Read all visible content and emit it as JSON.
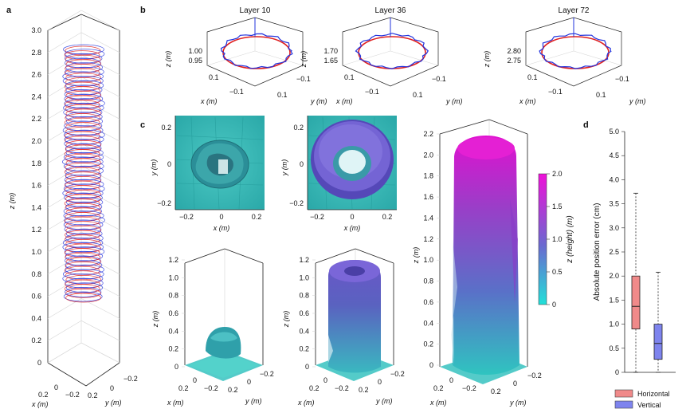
{
  "panel_labels": {
    "a": "a",
    "b": "b",
    "c": "c",
    "d": "d"
  },
  "panel_a": {
    "z_ticks": [
      "0",
      "0.2",
      "0.4",
      "0.6",
      "0.8",
      "1.0",
      "1.2",
      "1.4",
      "1.6",
      "1.8",
      "2.0",
      "2.2",
      "2.4",
      "2.6",
      "2.8",
      "3.0"
    ],
    "z_label": "z (m)",
    "x_label": "x (m)",
    "y_label": "y (m)",
    "x_ticks": [
      "0.2",
      "0",
      "−0.2"
    ],
    "y_ticks": [
      "0.2",
      "0",
      "−0.2"
    ]
  },
  "panel_b": [
    {
      "title": "Layer 10",
      "z_ticks": [
        "1.00",
        "0.95"
      ],
      "x_ticks": [
        "0.1",
        "−0.1"
      ],
      "y_ticks": [
        "0.1",
        "−0.1"
      ],
      "x_label": "x (m)",
      "y_label": "y (m)",
      "z_label": "z (m)"
    },
    {
      "title": "Layer 36",
      "z_ticks": [
        "1.70",
        "1.65"
      ],
      "x_ticks": [
        "0.1",
        "−0.1"
      ],
      "y_ticks": [
        "0.1",
        "−0.1"
      ],
      "x_label": "x (m)",
      "y_label": "y (m)",
      "z_label": "z (m)"
    },
    {
      "title": "Layer 72",
      "z_ticks": [
        "2.80",
        "2.75"
      ],
      "x_ticks": [
        "0.1",
        "−0.1"
      ],
      "y_ticks": [
        "0.1",
        "−0.1"
      ],
      "x_label": "x (m)",
      "y_label": "y (m)",
      "z_label": "z (m)"
    }
  ],
  "panel_c": {
    "top_views": [
      {
        "y_ticks": [
          "0.2",
          "0",
          "−0.2"
        ],
        "x_ticks": [
          "−0.2",
          "0",
          "0.2"
        ],
        "x_label": "x (m)",
        "y_label": "y (m)"
      },
      {
        "y_ticks": [
          "0.2",
          "0",
          "−0.2"
        ],
        "x_ticks": [
          "−0.2",
          "0",
          "0.2"
        ],
        "x_label": "x (m)",
        "y_label": "y (m)"
      }
    ],
    "views_3d": [
      {
        "z_ticks": [
          "1.2",
          "1.0",
          "0.8",
          "0.6",
          "0.4",
          "0.2",
          "0"
        ],
        "z_label": "z (m)",
        "x_label": "x (m)",
        "y_label": "y (m)",
        "x_ticks": [
          "0.2",
          "0",
          "−0.2"
        ],
        "y_ticks": [
          "0.2",
          "0",
          "−0.2"
        ]
      },
      {
        "z_ticks": [
          "1.2",
          "1.0",
          "0.8",
          "0.6",
          "0.4",
          "0.2",
          "0"
        ],
        "z_label": "z (m)",
        "x_label": "x (m)",
        "y_label": "y (m)",
        "x_ticks": [
          "0.2",
          "0",
          "−0.2"
        ],
        "y_ticks": [
          "0.2",
          "0",
          "−0.2"
        ]
      },
      {
        "z_ticks": [
          "2.2",
          "2.0",
          "1.8",
          "1.6",
          "1.4",
          "1.2",
          "1.0",
          "0.8",
          "0.6",
          "0.4",
          "0.2",
          "0"
        ],
        "z_label": "z (m)",
        "x_label": "x (m)",
        "y_label": "y (m)",
        "x_ticks": [
          "0.2",
          "0",
          "−0.2"
        ],
        "y_ticks": [
          "0.2",
          "0",
          "−0.2"
        ]
      }
    ],
    "colorbar": {
      "label": "z (height) (m)",
      "ticks": [
        "2.0",
        "1.5",
        "1.0",
        "0.5",
        "0"
      ],
      "color_low": "#22d8d4",
      "color_mid": "#6e56c8",
      "color_high": "#e11ad2"
    }
  },
  "colors": {
    "horizontal": "#f08a8a",
    "vertical": "#7e84ee",
    "trace_red": "#e02020",
    "trace_blue": "#2233dd"
  },
  "chart_data": {
    "type": "box",
    "ylabel": "Absolute position error (cm)",
    "ylim": [
      0,
      5.0
    ],
    "y_ticks": [
      "0",
      "0.5",
      "1.0",
      "1.5",
      "2.0",
      "2.5",
      "3.0",
      "3.5",
      "4.0",
      "4.5",
      "5.0"
    ],
    "series": [
      {
        "name": "Horizontal",
        "min": 0,
        "q1": 0.9,
        "median": 1.37,
        "q3": 2.0,
        "max": 3.72
      },
      {
        "name": "Vertical",
        "min": 0,
        "q1": 0.27,
        "median": 0.6,
        "q3": 1.0,
        "max": 2.08
      }
    ],
    "legend": [
      "Horizontal",
      "Vertical"
    ],
    "legend_position": "bottom"
  }
}
